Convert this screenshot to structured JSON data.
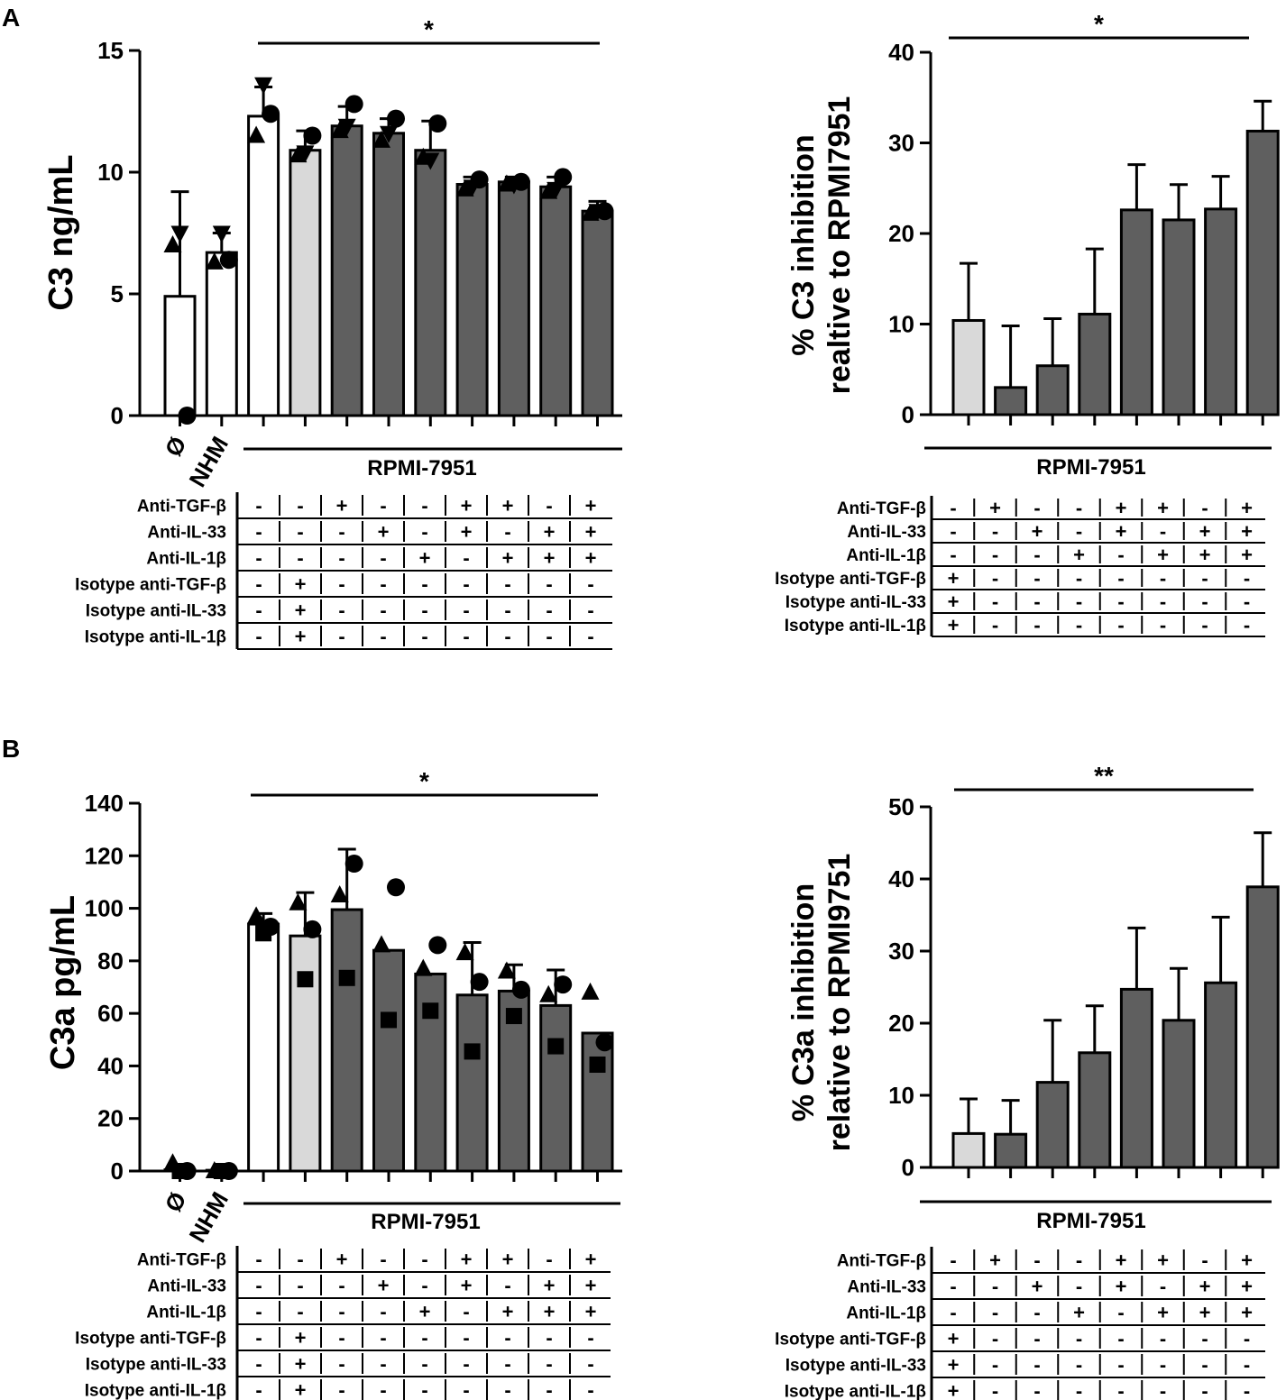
{
  "figure": {
    "panel_labels": [
      "A",
      "B"
    ]
  },
  "colors": {
    "white_bar": "#ffffff",
    "isotype_bar": "#d9d9d9",
    "treated_bar": "#5f5f5f",
    "ink": "#000000"
  },
  "table_row_labels": [
    "Anti-TGF-β",
    "Anti-IL-33",
    "Anti-IL-1β",
    "Isotype anti-TGF-β",
    "Isotype anti-IL-33",
    "Isotype anti-IL-1β"
  ],
  "chart_data": [
    {
      "id": "A-left",
      "type": "bar",
      "ylabel": "C3 ng/mL",
      "ylim": [
        0,
        15
      ],
      "yticks": [
        0,
        5,
        10,
        15
      ],
      "significance": "*",
      "group_label": "RPMI-7951",
      "category_labels": [
        "Ø",
        "NHM"
      ],
      "values": [
        4.9,
        6.7,
        12.3,
        10.9,
        11.9,
        11.6,
        10.9,
        9.5,
        9.6,
        9.4,
        8.4
      ],
      "errors": [
        4.3,
        0.8,
        1.2,
        0.8,
        0.8,
        0.6,
        1.2,
        0.3,
        0.2,
        0.4,
        0.4
      ],
      "fills": [
        "white",
        "white",
        "white",
        "isotype",
        "treated",
        "treated",
        "treated",
        "treated",
        "treated",
        "treated",
        "treated"
      ],
      "points": [
        [
          [
            7.0,
            "tri"
          ],
          [
            7.5,
            "tridown"
          ],
          [
            0.0,
            "circle"
          ]
        ],
        [
          [
            6.3,
            "tri"
          ],
          [
            7.5,
            "tridown"
          ],
          [
            6.4,
            "circle"
          ]
        ],
        [
          [
            11.5,
            "tri"
          ],
          [
            13.6,
            "tridown"
          ],
          [
            12.4,
            "circle"
          ]
        ],
        [
          [
            10.7,
            "tri"
          ],
          [
            10.8,
            "tridown"
          ],
          [
            11.5,
            "circle"
          ]
        ],
        [
          [
            11.7,
            "tri"
          ],
          [
            11.9,
            "tridown"
          ],
          [
            12.8,
            "circle"
          ]
        ],
        [
          [
            11.3,
            "tri"
          ],
          [
            11.6,
            "tridown"
          ],
          [
            12.2,
            "circle"
          ]
        ],
        [
          [
            10.6,
            "tri"
          ],
          [
            10.5,
            "tridown"
          ],
          [
            12.0,
            "circle"
          ]
        ],
        [
          [
            9.3,
            "tri"
          ],
          [
            9.4,
            "tridown"
          ],
          [
            9.7,
            "circle"
          ]
        ],
        [
          [
            9.5,
            "tri"
          ],
          [
            9.5,
            "tridown"
          ],
          [
            9.6,
            "circle"
          ]
        ],
        [
          [
            9.2,
            "tri"
          ],
          [
            9.3,
            "tridown"
          ],
          [
            9.8,
            "circle"
          ]
        ],
        [
          [
            8.3,
            "tri"
          ],
          [
            8.4,
            "tridown"
          ],
          [
            8.4,
            "circle"
          ]
        ]
      ],
      "table": [
        [
          "-",
          "-",
          "+",
          "-",
          "-",
          "+",
          "+",
          "-",
          "+"
        ],
        [
          "-",
          "-",
          "-",
          "+",
          "-",
          "+",
          "-",
          "+",
          "+"
        ],
        [
          "-",
          "-",
          "-",
          "-",
          "+",
          "-",
          "+",
          "+",
          "+"
        ],
        [
          "-",
          "+",
          "-",
          "-",
          "-",
          "-",
          "-",
          "-",
          "-"
        ],
        [
          "-",
          "+",
          "-",
          "-",
          "-",
          "-",
          "-",
          "-",
          "-"
        ],
        [
          "-",
          "+",
          "-",
          "-",
          "-",
          "-",
          "-",
          "-",
          "-"
        ]
      ]
    },
    {
      "id": "A-right",
      "type": "bar",
      "ylabel_lines": [
        "% C3 inhibition",
        "realtive to RPMI7951"
      ],
      "ylim": [
        0,
        40
      ],
      "yticks": [
        0,
        10,
        20,
        30,
        40
      ],
      "significance": "*",
      "group_label": "RPMI-7951",
      "values": [
        10.4,
        3.0,
        5.4,
        11.1,
        22.6,
        21.5,
        22.7,
        31.3
      ],
      "errors": [
        6.3,
        6.8,
        5.2,
        7.2,
        5.0,
        3.9,
        3.6,
        3.3
      ],
      "fills": [
        "isotype",
        "treated",
        "treated",
        "treated",
        "treated",
        "treated",
        "treated",
        "treated"
      ],
      "table": [
        [
          "-",
          "+",
          "-",
          "-",
          "+",
          "+",
          "-",
          "+"
        ],
        [
          "-",
          "-",
          "+",
          "-",
          "+",
          "-",
          "+",
          "+"
        ],
        [
          "-",
          "-",
          "-",
          "+",
          "-",
          "+",
          "+",
          "+"
        ],
        [
          "+",
          "-",
          "-",
          "-",
          "-",
          "-",
          "-",
          "-"
        ],
        [
          "+",
          "-",
          "-",
          "-",
          "-",
          "-",
          "-",
          "-"
        ],
        [
          "+",
          "-",
          "-",
          "-",
          "-",
          "-",
          "-",
          "-"
        ]
      ]
    },
    {
      "id": "B-left",
      "type": "bar",
      "ylabel": "C3a pg/mL",
      "ylim": [
        0,
        140
      ],
      "yticks": [
        0,
        20,
        40,
        60,
        80,
        100,
        120,
        140
      ],
      "significance": "*",
      "group_label": "RPMI-7951",
      "category_labels": [
        "Ø",
        "NHM"
      ],
      "values": [
        0.5,
        0.3,
        94,
        89.5,
        99.5,
        84,
        75,
        67,
        68.5,
        63,
        52.5
      ],
      "errors": [
        1.5,
        0.5,
        4,
        16.5,
        23,
        0,
        0,
        20,
        10,
        13.5,
        0
      ],
      "fills": [
        "white",
        "white",
        "white",
        "isotype",
        "treated",
        "treated",
        "treated",
        "treated",
        "treated",
        "treated",
        "treated"
      ],
      "points": [
        [
          [
            3,
            "tri"
          ],
          [
            0,
            "square"
          ],
          [
            0,
            "circle"
          ]
        ],
        [
          [
            0,
            "tri"
          ],
          [
            0,
            "square"
          ],
          [
            0,
            "circle"
          ]
        ],
        [
          [
            97,
            "tri"
          ],
          [
            90.5,
            "square"
          ],
          [
            93,
            "circle"
          ]
        ],
        [
          [
            102,
            "tri"
          ],
          [
            73,
            "square"
          ],
          [
            92,
            "circle"
          ]
        ],
        [
          [
            105,
            "tri"
          ],
          [
            73.5,
            "square"
          ],
          [
            117,
            "circle"
          ]
        ],
        [
          [
            86,
            "tri"
          ],
          [
            57.5,
            "square"
          ],
          [
            108,
            "circle"
          ]
        ],
        [
          [
            77,
            "tri"
          ],
          [
            61,
            "square"
          ],
          [
            86,
            "circle"
          ]
        ],
        [
          [
            83,
            "tri"
          ],
          [
            45.5,
            "square"
          ],
          [
            72,
            "circle"
          ]
        ],
        [
          [
            76,
            "tri"
          ],
          [
            59,
            "square"
          ],
          [
            69,
            "circle"
          ]
        ],
        [
          [
            67,
            "tri"
          ],
          [
            47.5,
            "square"
          ],
          [
            71,
            "circle"
          ]
        ],
        [
          [
            68,
            "tri"
          ],
          [
            40.5,
            "square"
          ],
          [
            49,
            "circle"
          ]
        ]
      ],
      "table": [
        [
          "-",
          "-",
          "+",
          "-",
          "-",
          "+",
          "+",
          "-",
          "+"
        ],
        [
          "-",
          "-",
          "-",
          "+",
          "-",
          "+",
          "-",
          "+",
          "+"
        ],
        [
          "-",
          "-",
          "-",
          "-",
          "+",
          "-",
          "+",
          "+",
          "+"
        ],
        [
          "-",
          "+",
          "-",
          "-",
          "-",
          "-",
          "-",
          "-",
          "-"
        ],
        [
          "-",
          "+",
          "-",
          "-",
          "-",
          "-",
          "-",
          "-",
          "-"
        ],
        [
          "-",
          "+",
          "-",
          "-",
          "-",
          "-",
          "-",
          "-",
          "-"
        ]
      ]
    },
    {
      "id": "B-right",
      "type": "bar",
      "ylabel_lines": [
        "% C3a inhibition",
        "relative to RPMI9751"
      ],
      "ylim": [
        0,
        50
      ],
      "yticks": [
        0,
        10,
        20,
        30,
        40,
        50
      ],
      "significance": "**",
      "group_label": "RPMI-7951",
      "values": [
        4.7,
        4.6,
        11.8,
        15.9,
        24.7,
        20.4,
        25.6,
        38.9
      ],
      "errors": [
        4.8,
        4.7,
        8.6,
        6.5,
        8.5,
        7.2,
        9.1,
        7.5
      ],
      "fills": [
        "isotype",
        "treated",
        "treated",
        "treated",
        "treated",
        "treated",
        "treated",
        "treated"
      ],
      "table": [
        [
          "-",
          "+",
          "-",
          "-",
          "+",
          "+",
          "-",
          "+"
        ],
        [
          "-",
          "-",
          "+",
          "-",
          "+",
          "-",
          "+",
          "+"
        ],
        [
          "-",
          "-",
          "-",
          "+",
          "-",
          "+",
          "+",
          "+"
        ],
        [
          "+",
          "-",
          "-",
          "-",
          "-",
          "-",
          "-",
          "-"
        ],
        [
          "+",
          "-",
          "-",
          "-",
          "-",
          "-",
          "-",
          "-"
        ],
        [
          "+",
          "-",
          "-",
          "-",
          "-",
          "-",
          "-",
          "-"
        ]
      ]
    }
  ]
}
